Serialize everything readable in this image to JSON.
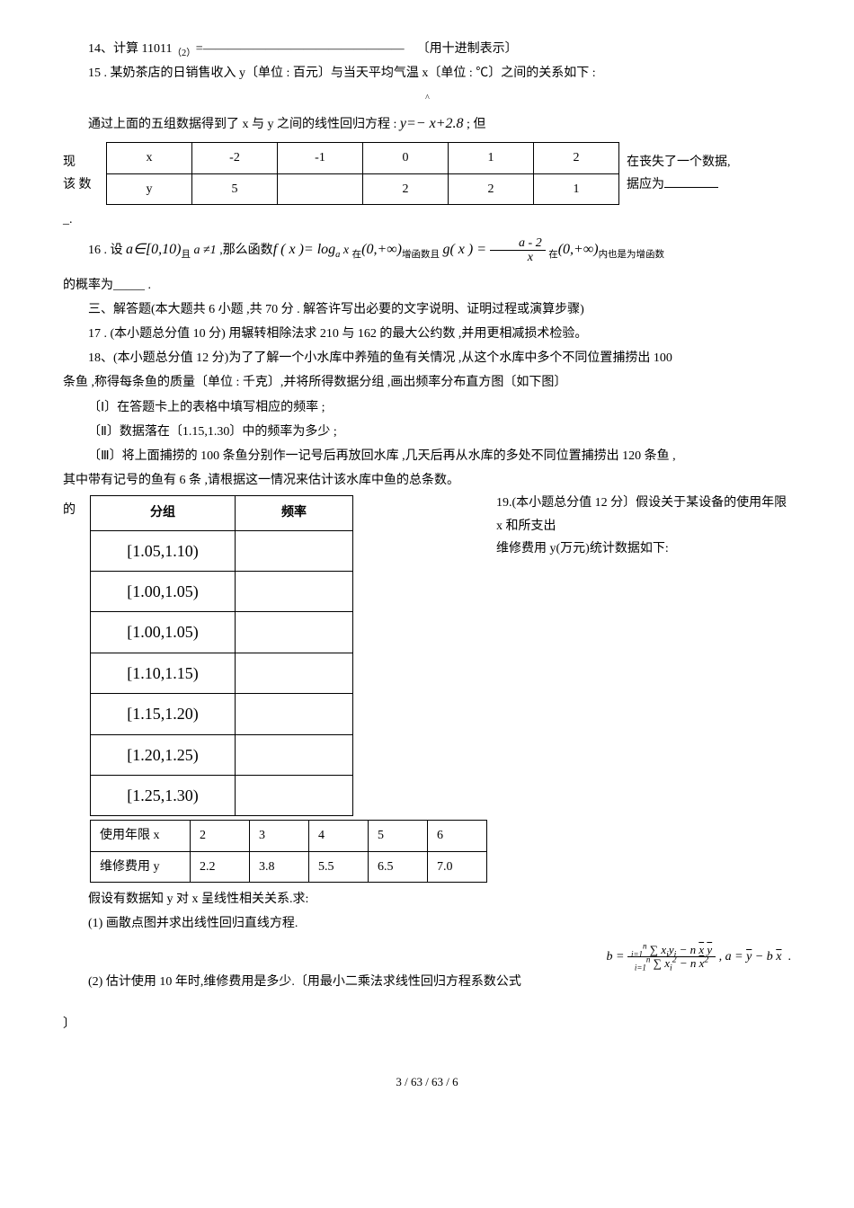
{
  "q14": {
    "label": "14、计算 11011",
    "sub": "（2）",
    "eq": "=",
    "dashes": "————————————————",
    "note": "〔用十进制表示〕"
  },
  "q15": {
    "line1": "15 . 某奶茶店的日销售收入 y〔单位 : 百元〕与当天平均气温 x〔单位 : ℃〕之间的关系如下 :",
    "line2_pre": "通过上面的五组数据得到了 x 与 y 之间的线性回归方程 : ",
    "equation": "y=− x+2.8",
    "line2_post": " ; 但",
    "side_left1": "现",
    "side_left2": "该 数",
    "side_left3": "_.",
    "side_right1": "在丧失了一个数据,",
    "side_right2": "据应为",
    "table": {
      "row1": [
        "x",
        "-2",
        "-1",
        "0",
        "1",
        "2"
      ],
      "row2": [
        "y",
        "5",
        "",
        "2",
        "2",
        "1"
      ]
    }
  },
  "q16": {
    "pre": "16 . 设",
    "a_in": "a∈[0,10)",
    "and1": "且",
    "a_ne": " a ≠1",
    "mid1": " ,那么函数",
    "fx": "f ( x )= log",
    "base": "a",
    "xarg": " x ",
    "at": "在",
    "range1": "(0,+∞)",
    "mid2": "增函数且",
    "gx_label": "g( x ) = ",
    "frac_num": "a - 2",
    "frac_den": "x",
    "at2": " 在",
    "range2": "(0,+∞)",
    "tail": "内也是为增函数",
    "line2": "的概率为_____ ."
  },
  "section3": "三、解答题(本大题共 6 小题 ,共 70 分 . 解答许写出必要的文字说明、证明过程或演算步骤)",
  "q17": "17 . (本小题总分值 10 分) 用辗转相除法求 210 与 162 的最大公约数 ,并用更相减损术检验。",
  "q18": {
    "l1": "18、(本小题总分值 12 分)为了了解一个小水库中养殖的鱼有关情况 ,从这个水库中多个不同位置捕捞出 100",
    "l2": "条鱼 ,称得每条鱼的质量〔单位 : 千克〕,并将所得数据分组 ,画出频率分布直方图〔如下图〕",
    "l3": "〔Ⅰ〕在答题卡上的表格中填写相应的频率 ;",
    "l4": "〔Ⅱ〕数据落在〔1.15,1.30〕中的频率为多少 ;",
    "l5": "〔Ⅲ〕将上面捕捞的 100 条鱼分别作一记号后再放回水库 ,几天后再从水库的多处不同位置捕捞出 120 条鱼 ,",
    "l6": "其中带有记号的鱼有 6 条 ,请根据这一情况来估计该水库中鱼的总条数。"
  },
  "q19": {
    "prefix_de": "的",
    "line1": "19.(本小题总分值 12 分〕假设关于某设备的使用年限 x 和所支出",
    "line2": "维修费用 y(万元)统计数据如下:",
    "freq_header1": "分组",
    "freq_header2": "频率",
    "intervals": [
      "[1.05,1.10)",
      "[1.00,1.05)",
      "[1.00,1.05)",
      "[1.10,1.15)",
      "[1.15,1.20)",
      "[1.20,1.25)",
      "[1.25,1.30)"
    ],
    "repair": {
      "row1": [
        "使用年限 x",
        "2",
        "3",
        "4",
        "5",
        "6"
      ],
      "row2": [
        "维修费用 y",
        "2.2",
        "3.8",
        "5.5",
        "6.5",
        "7.0"
      ]
    },
    "post1": "假设有数据知 y 对 x 呈线性相关关系.求:",
    "post2": "(1)     画散点图并求出线性回归直线方程.",
    "post3": "(2) 估计使用 10 年时,维修费用是多少.〔用最小二乘法求线性回归方程系数公式",
    "post4": "〕"
  },
  "formula": {
    "b_eq": "b = ",
    "num": "∑ xᵢyᵢ − n x̄ ȳ",
    "den": "∑ xᵢ² − n x̄²",
    "a_eq": " , a = ȳ − b x̄"
  },
  "footer": "3 / 63 / 63 / 6"
}
